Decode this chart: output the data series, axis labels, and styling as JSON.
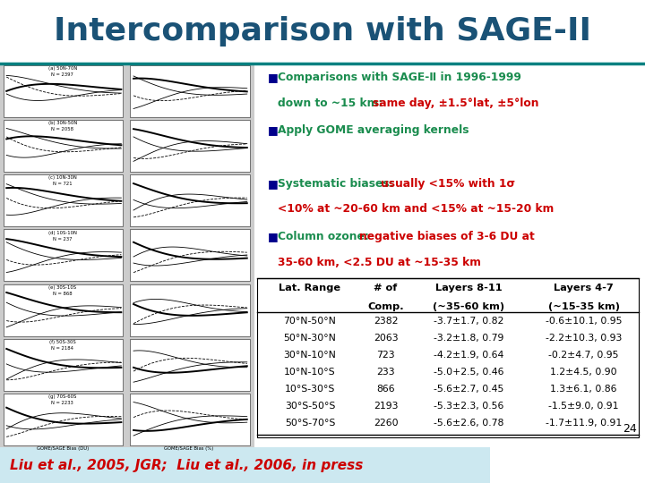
{
  "title": "Intercomparison with SAGE-II",
  "title_color": "#1a5276",
  "title_fontsize": 26,
  "bullet_color": "#1a8c4e",
  "bullet_red_color": "#cc0000",
  "bullet_blue_color": "#00008B",
  "table_rows": [
    [
      "70°N-50°N",
      "2382",
      "-3.7±1.7, 0.82",
      "-0.6±10.1, 0.95"
    ],
    [
      "50°N-30°N",
      "2063",
      "-3.2±1.8, 0.79",
      "-2.2±10.3, 0.93"
    ],
    [
      "30°N-10°N",
      "723",
      "-4.2±1.9, 0.64",
      "-0.2±4.7, 0.95"
    ],
    [
      "10°N-10°S",
      "233",
      "-5.0+2.5, 0.46",
      "1.2±4.5, 0.90"
    ],
    [
      "10°S-30°S",
      "866",
      "-5.6±2.7, 0.45",
      "1.3±6.1, 0.86"
    ],
    [
      "30°S-50°S",
      "2193",
      "-5.3±2.3, 0.56",
      "-1.5±9.0, 0.91"
    ],
    [
      "50°S-70°S",
      "2260",
      "-5.6±2.6, 0.78",
      "-1.7±11.9, 0.91"
    ]
  ],
  "footer_left": "Liu et al., 2005, JGR;  Liu et al., 2006, in press",
  "footer_left_color": "#cc0000",
  "footer_bg": "#cce8f0",
  "page_num": "24",
  "bg_color": "#ffffff",
  "header_line_color": "#008080"
}
